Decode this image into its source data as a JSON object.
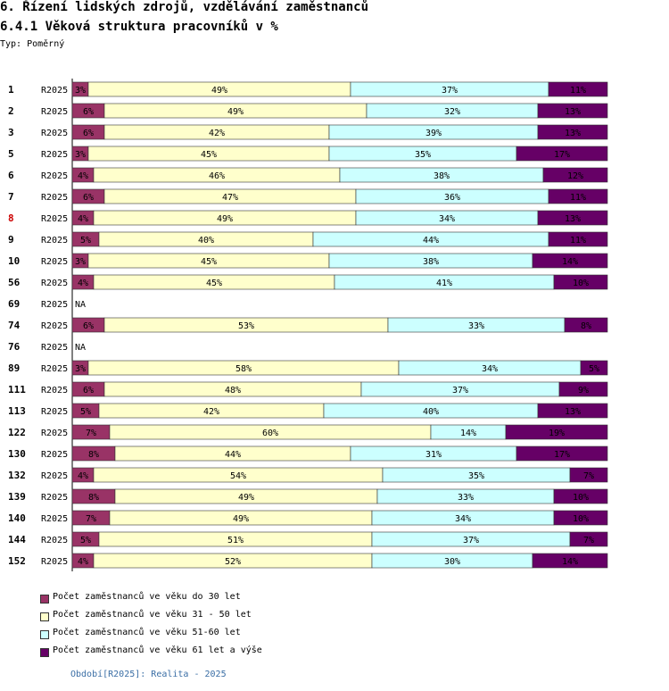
{
  "header": {
    "title": "6. Řízení lidských zdrojů, vzdělávání zaměstnanců",
    "subtitle": "6.4.1 Věková struktura pracovníků v %",
    "type_label": "Typ: Poměrný"
  },
  "chart_data": {
    "type": "bar",
    "orientation": "horizontal",
    "stacked": true,
    "normalized": true,
    "period_label": "R2025",
    "categories": [
      "1",
      "2",
      "3",
      "5",
      "6",
      "7",
      "8",
      "9",
      "10",
      "56",
      "69",
      "74",
      "76",
      "89",
      "111",
      "113",
      "122",
      "130",
      "132",
      "139",
      "140",
      "144",
      "152"
    ],
    "highlighted_category": "8",
    "na_label": "NA",
    "series": [
      {
        "name": "Počet zaměstnanců ve věku do 30 let",
        "values": [
          3,
          6,
          6,
          3,
          4,
          6,
          4,
          5,
          3,
          4,
          null,
          6,
          null,
          3,
          6,
          5,
          7,
          8,
          4,
          8,
          7,
          5,
          4
        ]
      },
      {
        "name": "Počet zaměstnanců ve věku 31 - 50 let",
        "values": [
          49,
          49,
          42,
          45,
          46,
          47,
          49,
          40,
          45,
          45,
          null,
          53,
          null,
          58,
          48,
          42,
          60,
          44,
          54,
          49,
          49,
          51,
          52
        ]
      },
      {
        "name": "Počet zaměstnanců ve věku 51-60 let",
        "values": [
          37,
          32,
          39,
          35,
          38,
          36,
          34,
          44,
          38,
          41,
          null,
          33,
          null,
          34,
          37,
          40,
          14,
          31,
          35,
          33,
          34,
          37,
          30
        ]
      },
      {
        "name": "Počet zaměstnanců ve věku 61 let a výše",
        "values": [
          11,
          13,
          13,
          17,
          12,
          11,
          13,
          11,
          14,
          10,
          null,
          8,
          null,
          5,
          9,
          13,
          19,
          17,
          7,
          10,
          10,
          7,
          14
        ]
      }
    ],
    "value_suffix": "%",
    "colors": [
      "#993366",
      "#ffffcc",
      "#ccffff",
      "#660066"
    ],
    "label_color": "#000000",
    "highlight_color": "#cc0000"
  },
  "legend": {
    "items": [
      {
        "label": "Počet zaměstnanců ve věku do 30 let",
        "color": "#993366"
      },
      {
        "label": "Počet zaměstnanců ve věku 31 - 50 let",
        "color": "#ffffcc"
      },
      {
        "label": "Počet zaměstnanců ve věku 51-60 let",
        "color": "#ccffff"
      },
      {
        "label": "Počet zaměstnanců ve věku 61 let a výše",
        "color": "#660066"
      }
    ]
  },
  "footer": {
    "text": "Období[R2025]: Realita - 2025"
  }
}
